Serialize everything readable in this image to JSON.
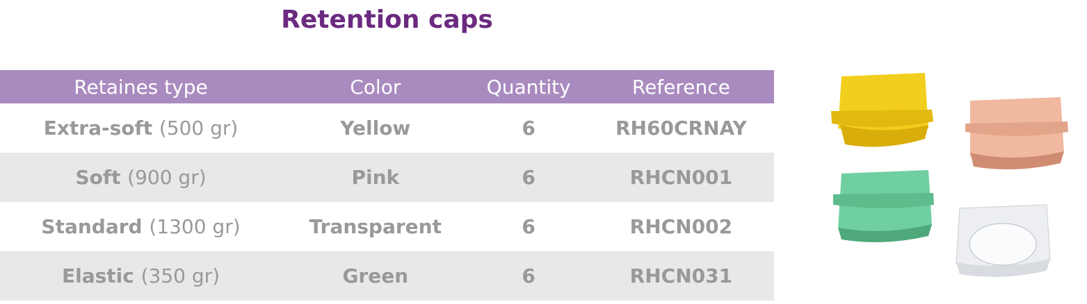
{
  "header": {
    "title": "Retention caps"
  },
  "table": {
    "columns": [
      "Retaines type",
      "Color",
      "Quantity",
      "Reference"
    ],
    "rows": [
      [
        {
          "name": "Extra-soft",
          "weight": "(500 gr)"
        },
        "Yellow",
        6,
        "RH60CRNAY"
      ],
      [
        {
          "name": "Soft",
          "weight": "(900 gr)"
        },
        "Pink",
        6,
        "RHCN001"
      ],
      [
        {
          "name": "Standard",
          "weight": "(1300 gr)"
        },
        "Transparent",
        6,
        "RHCN002"
      ],
      [
        {
          "name": "Elastic",
          "weight": "(350 gr)"
        },
        "Green",
        6,
        "RHCN031"
      ]
    ]
  }
}
